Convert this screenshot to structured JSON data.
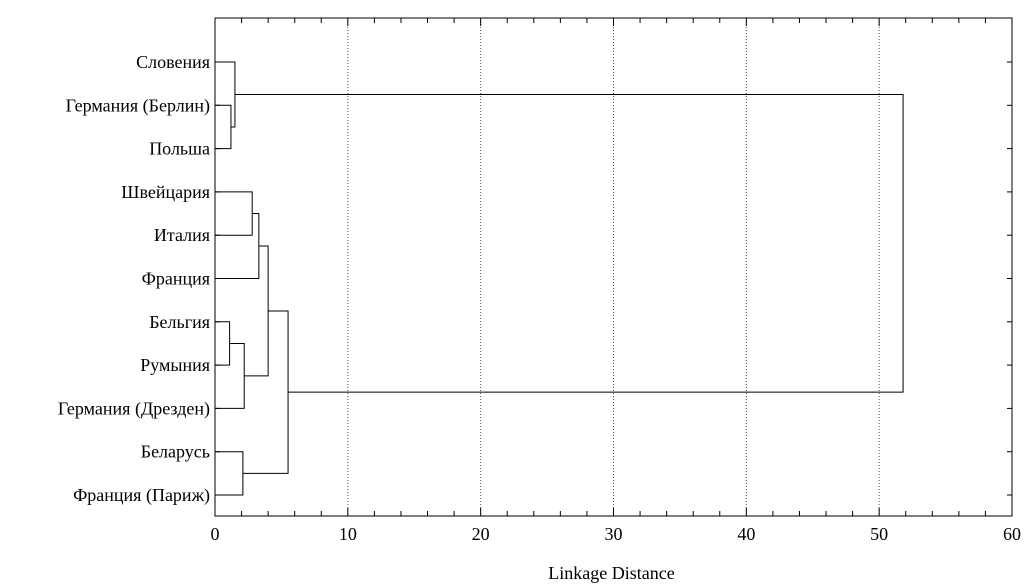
{
  "chart_data": {
    "type": "dendrogram",
    "title": "",
    "xlabel": "Linkage Distance",
    "ylabel": "",
    "xlim": [
      0,
      60
    ],
    "x_ticks": [
      0,
      10,
      20,
      30,
      40,
      50,
      60
    ],
    "minor_tick_step": 2,
    "grid": {
      "vertical": true,
      "at": [
        10,
        20,
        30,
        40,
        50
      ],
      "style": "dotted"
    },
    "leaves": [
      "Словения",
      "Германия (Берлин)",
      "Польша",
      "Швейцария",
      "Италия",
      "Франция",
      "Бельгия",
      "Румыния",
      "Германия (Дрезден)",
      "Беларусь",
      "Франция (Париж)"
    ],
    "merges": [
      {
        "left": 1,
        "right": 2,
        "height": 1.2
      },
      {
        "left": 0,
        "right": "m0",
        "height": 1.5
      },
      {
        "left": 3,
        "right": 4,
        "height": 2.8
      },
      {
        "left": "m2",
        "right": 5,
        "height": 3.3
      },
      {
        "left": 6,
        "right": 7,
        "height": 1.1
      },
      {
        "left": "m4",
        "right": 8,
        "height": 2.2
      },
      {
        "left": "m3",
        "right": "m5",
        "height": 4.0
      },
      {
        "left": 9,
        "right": 10,
        "height": 2.1
      },
      {
        "left": "m6",
        "right": "m7",
        "height": 5.5
      },
      {
        "left": "m1",
        "right": "m8",
        "height": 51.8
      }
    ],
    "line_color": "#000000",
    "grid_color": "#555555"
  }
}
